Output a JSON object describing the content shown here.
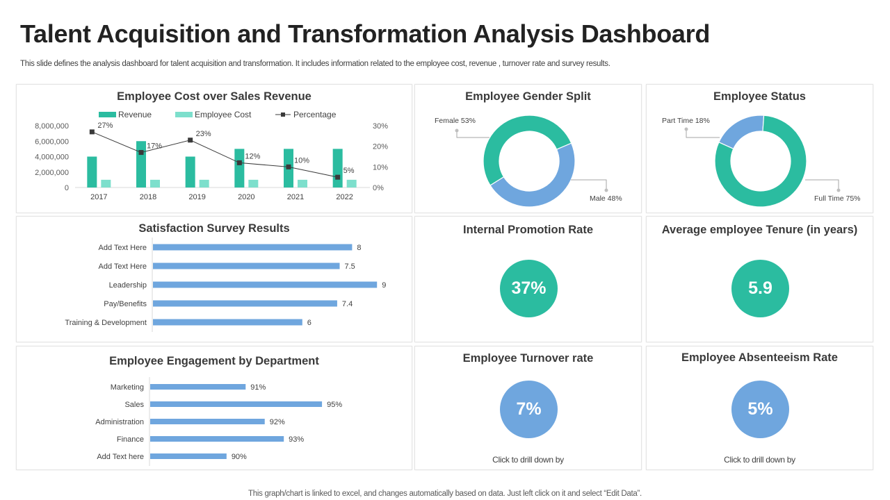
{
  "header": {
    "title": "Talent Acquisition and Transformation Analysis Dashboard",
    "subtitle": "This slide defines the  analysis dashboard for talent acquisition and transformation. It includes information related to the  employee cost, revenue ,  turnover rate and  survey results."
  },
  "footer": {
    "note": "This graph/chart is linked to excel,  and changes automatically based on data. Just left click on it and select “Edit Data”."
  },
  "colors": {
    "teal": "#2bbca0",
    "light_teal": "#7ddfcc",
    "blue": "#6fa6de",
    "line": "#3a3a3a"
  },
  "kpis": {
    "promotion": {
      "title": "Internal Promotion Rate",
      "value": "37%"
    },
    "tenure": {
      "title": "Average employee Tenure (in years)",
      "value": "5.9"
    },
    "turnover": {
      "title": "Employee Turnover rate",
      "value": "7%",
      "drill": "Click to  drill down by"
    },
    "absenteeism": {
      "title": "Employee Absenteeism Rate",
      "value": "5%",
      "drill": "Click to  drill down by"
    }
  },
  "chart_data": [
    {
      "type": "bar",
      "title": "Employee Cost over Sales Revenue",
      "categories": [
        "2017",
        "2018",
        "2019",
        "2020",
        "2021",
        "2022"
      ],
      "series": [
        {
          "name": "Revenue",
          "kind": "bar",
          "values": [
            4000000,
            6000000,
            4000000,
            5000000,
            5000000,
            5000000
          ]
        },
        {
          "name": "Employee Cost",
          "kind": "bar",
          "values": [
            1000000,
            1000000,
            1000000,
            1000000,
            1000000,
            1000000
          ]
        },
        {
          "name": "Percentage",
          "kind": "line",
          "axis": "secondary",
          "values": [
            27,
            17,
            23,
            12,
            10,
            5
          ],
          "labels": [
            "27%",
            "17%",
            "23%",
            "12%",
            "10%",
            "5%"
          ]
        }
      ],
      "ylim": [
        0,
        8000000
      ],
      "yticks": [
        "0",
        "2,000,000",
        "4,000,000",
        "6,000,000",
        "8,000,000"
      ],
      "y2lim": [
        0,
        30
      ],
      "y2ticks": [
        "0%",
        "10%",
        "20%",
        "30%"
      ],
      "legend": "top",
      "grid": false
    },
    {
      "type": "pie",
      "donut": true,
      "title": "Employee Gender Split",
      "slices": [
        {
          "name": "Female",
          "value": 53,
          "label": "Female  53%"
        },
        {
          "name": "Male",
          "value": 48,
          "label": "Male  48%"
        }
      ]
    },
    {
      "type": "pie",
      "donut": true,
      "title": "Employee Status",
      "slices": [
        {
          "name": "Part Time",
          "value": 18,
          "label": "Part Time  18%"
        },
        {
          "name": "Full Time",
          "value": 75,
          "label": "Full Time  75%"
        }
      ]
    },
    {
      "type": "bar",
      "orientation": "horizontal",
      "title": "Satisfaction Survey Results",
      "categories": [
        "Add Text Here",
        "Add Text Here",
        "Leadership",
        "Pay/Benefits",
        "Training & Development"
      ],
      "values": [
        8,
        7.5,
        9,
        7.4,
        6
      ],
      "labels": [
        "8",
        "7.5",
        "9",
        "7.4",
        "6"
      ],
      "xlim": [
        0,
        10
      ]
    },
    {
      "type": "bar",
      "orientation": "horizontal",
      "title": "Employee Engagement by Department",
      "categories": [
        "Marketing",
        "Sales",
        "Administration",
        "Finance",
        "Add Text here"
      ],
      "values": [
        91,
        95,
        92,
        93,
        90
      ],
      "labels": [
        "91%",
        "95%",
        "92%",
        "93%",
        "90%"
      ],
      "xlim": [
        86,
        97
      ]
    }
  ]
}
